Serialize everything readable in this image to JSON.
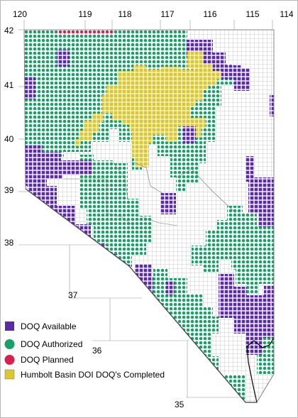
{
  "map": {
    "longitude_labels": [
      "120",
      "119",
      "118",
      "117",
      "116",
      "115",
      "114"
    ],
    "latitude_labels": [
      "42",
      "41",
      "40",
      "39",
      "38",
      "37",
      "36",
      "35"
    ]
  },
  "legend": {
    "items": [
      {
        "key": "available",
        "label": "DOQ Available",
        "color": "#5a2aa8",
        "icon": "purple-square-icon"
      },
      {
        "key": "authorized",
        "label": "DOQ Authorized",
        "color": "#1aa16a",
        "icon": "green-dot-icon"
      },
      {
        "key": "planned",
        "label": "DOQ Planned",
        "color": "#d8204e",
        "icon": "red-dot-icon"
      },
      {
        "key": "humbolt",
        "label": "Humbolt Basin DOI DOQ's Completed",
        "color": "#d9c830",
        "icon": "yellow-square-icon"
      }
    ]
  },
  "colors": {
    "available": "#5a2aa8",
    "authorized": "#1aa16a",
    "planned": "#d8204e",
    "humbolt": "#d9c830",
    "grid": "#9a9a9a",
    "boundary": "#000000"
  }
}
